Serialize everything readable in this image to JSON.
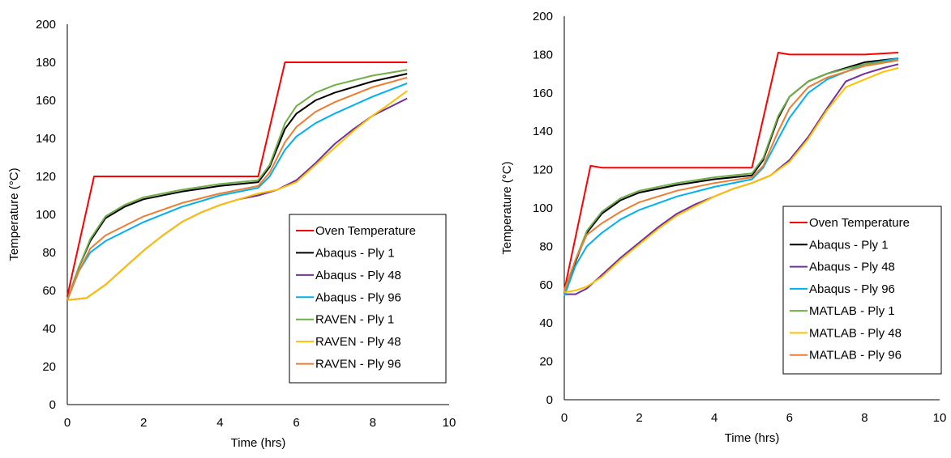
{
  "chart_data": [
    {
      "type": "line",
      "xlabel": "Time (hrs)",
      "ylabel": "Temperature (°C)",
      "xlim": [
        0,
        10
      ],
      "ylim": [
        0,
        200
      ],
      "xticks": [
        0,
        2,
        4,
        6,
        8,
        10
      ],
      "yticks": [
        0,
        20,
        40,
        60,
        80,
        100,
        120,
        140,
        160,
        180,
        200
      ],
      "grid": false,
      "legend_position": "right-middle",
      "series": [
        {
          "name": "Oven Temperature",
          "color": "#ff0000",
          "points": [
            [
              0,
              57
            ],
            [
              0.7,
              120
            ],
            [
              5.0,
              120
            ],
            [
              5.7,
              180
            ],
            [
              8.9,
              180
            ]
          ]
        },
        {
          "name": "Abaqus - Ply 1",
          "color": "#000000",
          "points": [
            [
              0,
              55
            ],
            [
              0.3,
              72
            ],
            [
              0.6,
              86
            ],
            [
              1.0,
              98
            ],
            [
              1.5,
              104
            ],
            [
              2,
              108
            ],
            [
              3,
              112
            ],
            [
              4,
              115
            ],
            [
              5,
              117
            ],
            [
              5.3,
              125
            ],
            [
              5.7,
              145
            ],
            [
              6,
              153
            ],
            [
              6.5,
              160
            ],
            [
              7,
              164
            ],
            [
              8,
              170
            ],
            [
              8.9,
              174
            ]
          ]
        },
        {
          "name": "Abaqus - Ply 48",
          "color": "#7030a0",
          "points": [
            [
              0,
              55
            ],
            [
              0.5,
              56
            ],
            [
              1,
              63
            ],
            [
              1.5,
              72
            ],
            [
              2,
              81
            ],
            [
              2.5,
              89
            ],
            [
              3,
              96
            ],
            [
              3.5,
              101
            ],
            [
              4,
              105
            ],
            [
              4.5,
              108
            ],
            [
              5,
              110
            ],
            [
              5.5,
              113
            ],
            [
              6,
              118
            ],
            [
              6.5,
              127
            ],
            [
              7,
              137
            ],
            [
              7.5,
              145
            ],
            [
              8,
              152
            ],
            [
              8.5,
              157
            ],
            [
              8.9,
              161
            ]
          ]
        },
        {
          "name": "Abaqus - Ply 96",
          "color": "#00b0f0",
          "points": [
            [
              0,
              55
            ],
            [
              0.3,
              70
            ],
            [
              0.6,
              80
            ],
            [
              1,
              86
            ],
            [
              1.5,
              91
            ],
            [
              2,
              96
            ],
            [
              3,
              104
            ],
            [
              4,
              110
            ],
            [
              5,
              114
            ],
            [
              5.3,
              120
            ],
            [
              5.7,
              134
            ],
            [
              6,
              141
            ],
            [
              6.5,
              148
            ],
            [
              7,
              153
            ],
            [
              8,
              162
            ],
            [
              8.9,
              169
            ]
          ]
        },
        {
          "name": "RAVEN - Ply 1",
          "color": "#70ad47",
          "points": [
            [
              0,
              55
            ],
            [
              0.3,
              72
            ],
            [
              0.6,
              87
            ],
            [
              1,
              99
            ],
            [
              1.5,
              105
            ],
            [
              2,
              109
            ],
            [
              3,
              113
            ],
            [
              4,
              116
            ],
            [
              5,
              118
            ],
            [
              5.3,
              126
            ],
            [
              5.7,
              148
            ],
            [
              6,
              157
            ],
            [
              6.5,
              164
            ],
            [
              7,
              168
            ],
            [
              8,
              173
            ],
            [
              8.9,
              176
            ]
          ]
        },
        {
          "name": "RAVEN - Ply 48",
          "color": "#ffc000",
          "points": [
            [
              0,
              55
            ],
            [
              0.5,
              56
            ],
            [
              1,
              63
            ],
            [
              1.5,
              72
            ],
            [
              2,
              81
            ],
            [
              2.5,
              89
            ],
            [
              3,
              96
            ],
            [
              3.5,
              101
            ],
            [
              4,
              105
            ],
            [
              4.5,
              108
            ],
            [
              5,
              111
            ],
            [
              5.5,
              113
            ],
            [
              6,
              117
            ],
            [
              6.5,
              126
            ],
            [
              7,
              135
            ],
            [
              7.5,
              144
            ],
            [
              8,
              152
            ],
            [
              8.5,
              159
            ],
            [
              8.9,
              165
            ]
          ]
        },
        {
          "name": "RAVEN - Ply 96",
          "color": "#ed7d31",
          "points": [
            [
              0,
              55
            ],
            [
              0.3,
              70
            ],
            [
              0.6,
              82
            ],
            [
              1,
              89
            ],
            [
              1.5,
              94
            ],
            [
              2,
              99
            ],
            [
              3,
              106
            ],
            [
              4,
              111
            ],
            [
              5,
              115
            ],
            [
              5.3,
              122
            ],
            [
              5.7,
              138
            ],
            [
              6,
              146
            ],
            [
              6.5,
              154
            ],
            [
              7,
              159
            ],
            [
              8,
              167
            ],
            [
              8.9,
              172
            ]
          ]
        }
      ]
    },
    {
      "type": "line",
      "xlabel": "Time (hrs)",
      "ylabel": "Temperature (°C)",
      "xlim": [
        0,
        10
      ],
      "ylim": [
        0,
        200
      ],
      "xticks": [
        0,
        2,
        4,
        6,
        8,
        10
      ],
      "yticks": [
        0,
        20,
        40,
        60,
        80,
        100,
        120,
        140,
        160,
        180,
        200
      ],
      "grid": false,
      "legend_position": "right-middle",
      "series": [
        {
          "name": "Oven Temperature",
          "color": "#ff0000",
          "points": [
            [
              0,
              57
            ],
            [
              0.7,
              122
            ],
            [
              1,
              121
            ],
            [
              2,
              121
            ],
            [
              3,
              121
            ],
            [
              4,
              121
            ],
            [
              5.0,
              121
            ],
            [
              5.7,
              181
            ],
            [
              6,
              180
            ],
            [
              7,
              180
            ],
            [
              8,
              180
            ],
            [
              8.9,
              181
            ]
          ]
        },
        {
          "name": "Abaqus - Ply 1",
          "color": "#000000",
          "points": [
            [
              0,
              56
            ],
            [
              0.3,
              72
            ],
            [
              0.6,
              87
            ],
            [
              1,
              97
            ],
            [
              1.5,
              104
            ],
            [
              2,
              108
            ],
            [
              3,
              112
            ],
            [
              4,
              115
            ],
            [
              5,
              117
            ],
            [
              5.3,
              125
            ],
            [
              5.7,
              147
            ],
            [
              6,
              158
            ],
            [
              6.5,
              166
            ],
            [
              7,
              170
            ],
            [
              8,
              176
            ],
            [
              8.9,
              178
            ]
          ]
        },
        {
          "name": "Abaqus - Ply 48",
          "color": "#7030a0",
          "points": [
            [
              0,
              55
            ],
            [
              0.3,
              55
            ],
            [
              0.6,
              58
            ],
            [
              1,
              65
            ],
            [
              1.5,
              74
            ],
            [
              2,
              82
            ],
            [
              2.5,
              90
            ],
            [
              3,
              97
            ],
            [
              3.5,
              102
            ],
            [
              4,
              106
            ],
            [
              4.5,
              110
            ],
            [
              5,
              113
            ],
            [
              5.5,
              117
            ],
            [
              6,
              125
            ],
            [
              6.5,
              137
            ],
            [
              7,
              152
            ],
            [
              7.5,
              166
            ],
            [
              8,
              170
            ],
            [
              8.5,
              173
            ],
            [
              8.9,
              175
            ]
          ]
        },
        {
          "name": "Abaqus - Ply 96",
          "color": "#00b0f0",
          "points": [
            [
              0,
              54
            ],
            [
              0.3,
              70
            ],
            [
              0.6,
              80
            ],
            [
              1,
              87
            ],
            [
              1.5,
              94
            ],
            [
              2,
              99
            ],
            [
              3,
              106
            ],
            [
              4,
              111
            ],
            [
              5,
              115
            ],
            [
              5.3,
              121
            ],
            [
              5.7,
              136
            ],
            [
              6,
              147
            ],
            [
              6.5,
              160
            ],
            [
              7,
              167
            ],
            [
              8,
              175
            ],
            [
              8.9,
              178
            ]
          ]
        },
        {
          "name": "MATLAB - Ply 1",
          "color": "#70ad47",
          "points": [
            [
              0,
              56
            ],
            [
              0.3,
              73
            ],
            [
              0.6,
              88
            ],
            [
              1,
              98
            ],
            [
              1.5,
              105
            ],
            [
              2,
              109
            ],
            [
              3,
              113
            ],
            [
              4,
              116
            ],
            [
              5,
              118
            ],
            [
              5.3,
              126
            ],
            [
              5.7,
              148
            ],
            [
              6,
              158
            ],
            [
              6.5,
              166
            ],
            [
              7,
              170
            ],
            [
              8,
              175
            ],
            [
              8.9,
              177
            ]
          ]
        },
        {
          "name": "MATLAB - Ply 48",
          "color": "#ffc000",
          "points": [
            [
              0,
              56
            ],
            [
              0.3,
              57
            ],
            [
              0.6,
              59
            ],
            [
              1,
              64
            ],
            [
              1.5,
              73
            ],
            [
              2,
              81
            ],
            [
              2.5,
              89
            ],
            [
              3,
              96
            ],
            [
              3.5,
              101
            ],
            [
              4,
              106
            ],
            [
              4.5,
              110
            ],
            [
              5,
              113
            ],
            [
              5.5,
              117
            ],
            [
              6,
              124
            ],
            [
              6.5,
              136
            ],
            [
              7,
              151
            ],
            [
              7.5,
              163
            ],
            [
              8,
              167
            ],
            [
              8.5,
              171
            ],
            [
              8.9,
              173
            ]
          ]
        },
        {
          "name": "MATLAB - Ply 96",
          "color": "#ed7d31",
          "points": [
            [
              0,
              57
            ],
            [
              0.3,
              73
            ],
            [
              0.6,
              86
            ],
            [
              1,
              92
            ],
            [
              1.5,
              98
            ],
            [
              2,
              103
            ],
            [
              3,
              109
            ],
            [
              4,
              113
            ],
            [
              5,
              116
            ],
            [
              5.3,
              122
            ],
            [
              5.7,
              140
            ],
            [
              6,
              152
            ],
            [
              6.5,
              163
            ],
            [
              7,
              168
            ],
            [
              8,
              174
            ],
            [
              8.9,
              177
            ]
          ]
        }
      ]
    }
  ]
}
